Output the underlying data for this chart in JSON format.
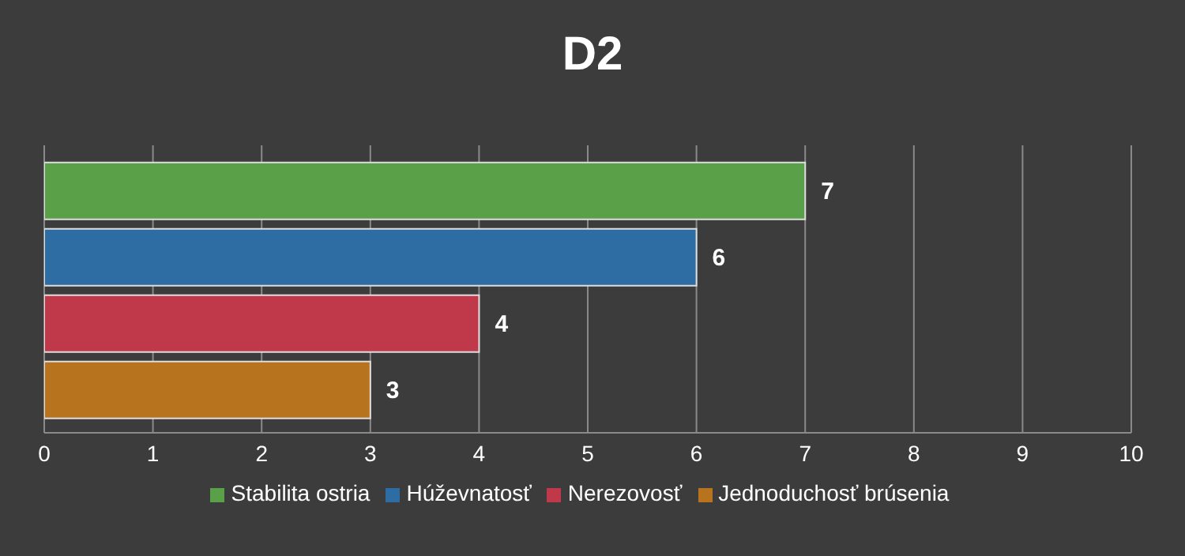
{
  "chart_data": {
    "type": "bar",
    "title": "D2",
    "orientation": "horizontal",
    "categories": [
      null
    ],
    "series": [
      {
        "name": "Stabilita ostria",
        "color": "#5aa048",
        "values": [
          7
        ]
      },
      {
        "name": "Húževnatosť",
        "color": "#2e6da4",
        "values": [
          6
        ]
      },
      {
        "name": "Nerezovosť",
        "color": "#c0394b",
        "values": [
          4
        ]
      },
      {
        "name": "Jednoduchosť brúsenia",
        "color": "#b8731e",
        "values": [
          3
        ]
      }
    ],
    "xlim": [
      0,
      10
    ],
    "xticks": [
      0,
      1,
      2,
      3,
      4,
      5,
      6,
      7,
      8,
      9,
      10
    ],
    "grid": "x",
    "legend": "bottom",
    "data_labels": true
  }
}
